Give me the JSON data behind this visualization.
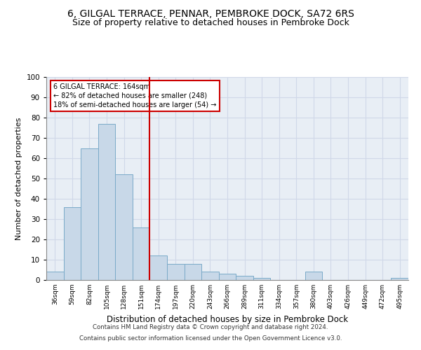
{
  "title1": "6, GILGAL TERRACE, PENNAR, PEMBROKE DOCK, SA72 6RS",
  "title2": "Size of property relative to detached houses in Pembroke Dock",
  "xlabel": "Distribution of detached houses by size in Pembroke Dock",
  "ylabel": "Number of detached properties",
  "categories": [
    "36sqm",
    "59sqm",
    "82sqm",
    "105sqm",
    "128sqm",
    "151sqm",
    "174sqm",
    "197sqm",
    "220sqm",
    "243sqm",
    "266sqm",
    "289sqm",
    "311sqm",
    "334sqm",
    "357sqm",
    "380sqm",
    "403sqm",
    "426sqm",
    "449sqm",
    "472sqm",
    "495sqm"
  ],
  "values": [
    4,
    36,
    65,
    77,
    52,
    26,
    12,
    8,
    8,
    4,
    3,
    2,
    1,
    0,
    0,
    4,
    0,
    0,
    0,
    0,
    1
  ],
  "bar_color": "#c8d8e8",
  "bar_edge_color": "#7aaac8",
  "redline_x": 5.5,
  "annotation_text": "6 GILGAL TERRACE: 164sqm\n← 82% of detached houses are smaller (248)\n18% of semi-detached houses are larger (54) →",
  "annotation_box_color": "#ffffff",
  "annotation_box_edge_color": "#cc0000",
  "ylim": [
    0,
    100
  ],
  "yticks": [
    0,
    10,
    20,
    30,
    40,
    50,
    60,
    70,
    80,
    90,
    100
  ],
  "grid_color": "#d0d8e8",
  "background_color": "#e8eef5",
  "footer1": "Contains HM Land Registry data © Crown copyright and database right 2024.",
  "footer2": "Contains public sector information licensed under the Open Government Licence v3.0.",
  "title1_fontsize": 10,
  "title2_fontsize": 9,
  "xlabel_fontsize": 8.5,
  "ylabel_fontsize": 8
}
